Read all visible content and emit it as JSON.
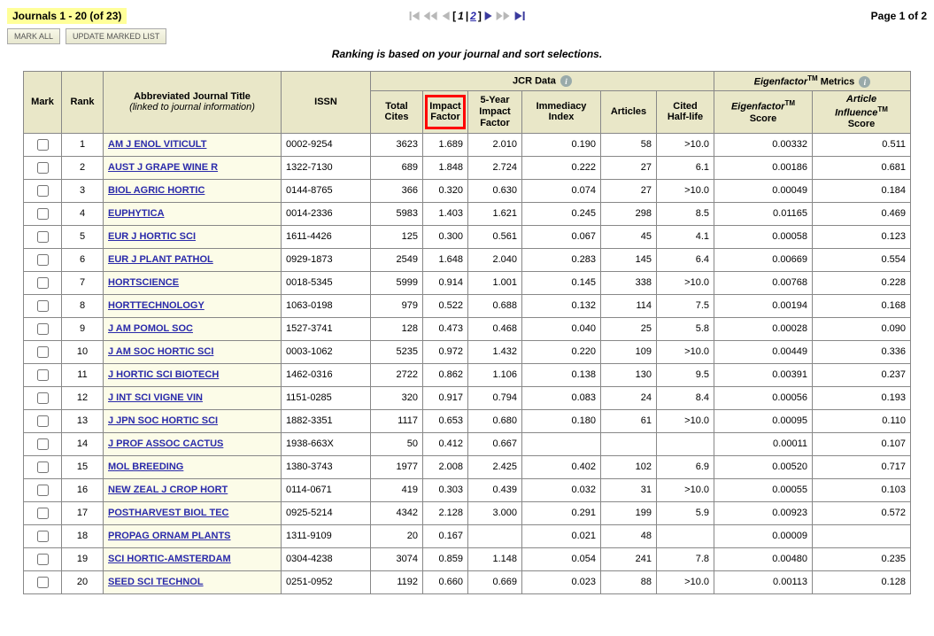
{
  "header": {
    "count_text": "Journals 1 - 20 (of 23)",
    "page_text": "Page 1 of 2",
    "ranking_text": "Ranking is based on your journal and sort selections.",
    "mark_all": "MARK ALL",
    "update_marked": "UPDATE MARKED LIST",
    "pages": [
      "1",
      "2"
    ],
    "current_page": "1"
  },
  "columns": {
    "mark": "Mark",
    "rank": "Rank",
    "title": "Abbreviated Journal Title",
    "title_sub": "(linked to journal information)",
    "issn": "ISSN",
    "jcr_group": "JCR Data",
    "eigen_group": "Eigenfactor",
    "eigen_group_suffix": " Metrics",
    "total_cites": "Total Cites",
    "impact_factor": "Impact Factor",
    "five_year": "5-Year Impact Factor",
    "immediacy": "Immediacy Index",
    "articles": "Articles",
    "halflife": "Cited Half-life",
    "eigen_score": "Eigenfactor",
    "eigen_score_suffix": " Score",
    "influence": "Article Influence",
    "influence_suffix": " Score"
  },
  "col_widths": {
    "total_cites": 48,
    "impact_factor": 50,
    "five_year": 50,
    "immediacy": 78,
    "articles": 52,
    "halflife": 54,
    "eigen": 100,
    "influence": 100
  },
  "colors": {
    "highlight_bg": "#ffff99",
    "header_bg": "#e9e7c8",
    "title_bg": "#fcfce8",
    "link": "#2a2aaa",
    "red": "#ff0000",
    "nav_enabled": "#3a3a9d",
    "nav_disabled": "#b8b8b8"
  },
  "rows": [
    {
      "rank": 1,
      "title": "AM J ENOL VITICULT",
      "issn": "0002-9254",
      "cites": "3623",
      "if": "1.689",
      "if5": "2.010",
      "imm": "0.190",
      "art": "58",
      "hl": ">10.0",
      "eig": "0.00332",
      "inf": "0.511"
    },
    {
      "rank": 2,
      "title": "AUST J GRAPE WINE R",
      "issn": "1322-7130",
      "cites": "689",
      "if": "1.848",
      "if5": "2.724",
      "imm": "0.222",
      "art": "27",
      "hl": "6.1",
      "eig": "0.00186",
      "inf": "0.681"
    },
    {
      "rank": 3,
      "title": "BIOL AGRIC HORTIC",
      "issn": "0144-8765",
      "cites": "366",
      "if": "0.320",
      "if5": "0.630",
      "imm": "0.074",
      "art": "27",
      "hl": ">10.0",
      "eig": "0.00049",
      "inf": "0.184"
    },
    {
      "rank": 4,
      "title": "EUPHYTICA",
      "issn": "0014-2336",
      "cites": "5983",
      "if": "1.403",
      "if5": "1.621",
      "imm": "0.245",
      "art": "298",
      "hl": "8.5",
      "eig": "0.01165",
      "inf": "0.469"
    },
    {
      "rank": 5,
      "title": "EUR J HORTIC SCI",
      "issn": "1611-4426",
      "cites": "125",
      "if": "0.300",
      "if5": "0.561",
      "imm": "0.067",
      "art": "45",
      "hl": "4.1",
      "eig": "0.00058",
      "inf": "0.123"
    },
    {
      "rank": 6,
      "title": "EUR J PLANT PATHOL",
      "issn": "0929-1873",
      "cites": "2549",
      "if": "1.648",
      "if5": "2.040",
      "imm": "0.283",
      "art": "145",
      "hl": "6.4",
      "eig": "0.00669",
      "inf": "0.554"
    },
    {
      "rank": 7,
      "title": "HORTSCIENCE",
      "issn": "0018-5345",
      "cites": "5999",
      "if": "0.914",
      "if5": "1.001",
      "imm": "0.145",
      "art": "338",
      "hl": ">10.0",
      "eig": "0.00768",
      "inf": "0.228"
    },
    {
      "rank": 8,
      "title": "HORTTECHNOLOGY",
      "issn": "1063-0198",
      "cites": "979",
      "if": "0.522",
      "if5": "0.688",
      "imm": "0.132",
      "art": "114",
      "hl": "7.5",
      "eig": "0.00194",
      "inf": "0.168"
    },
    {
      "rank": 9,
      "title": "J AM POMOL SOC",
      "issn": "1527-3741",
      "cites": "128",
      "if": "0.473",
      "if5": "0.468",
      "imm": "0.040",
      "art": "25",
      "hl": "5.8",
      "eig": "0.00028",
      "inf": "0.090"
    },
    {
      "rank": 10,
      "title": "J AM SOC HORTIC SCI",
      "issn": "0003-1062",
      "cites": "5235",
      "if": "0.972",
      "if5": "1.432",
      "imm": "0.220",
      "art": "109",
      "hl": ">10.0",
      "eig": "0.00449",
      "inf": "0.336"
    },
    {
      "rank": 11,
      "title": "J HORTIC SCI BIOTECH",
      "issn": "1462-0316",
      "cites": "2722",
      "if": "0.862",
      "if5": "1.106",
      "imm": "0.138",
      "art": "130",
      "hl": "9.5",
      "eig": "0.00391",
      "inf": "0.237"
    },
    {
      "rank": 12,
      "title": "J INT SCI VIGNE VIN",
      "issn": "1151-0285",
      "cites": "320",
      "if": "0.917",
      "if5": "0.794",
      "imm": "0.083",
      "art": "24",
      "hl": "8.4",
      "eig": "0.00056",
      "inf": "0.193"
    },
    {
      "rank": 13,
      "title": "J JPN SOC HORTIC SCI",
      "issn": "1882-3351",
      "cites": "1117",
      "if": "0.653",
      "if5": "0.680",
      "imm": "0.180",
      "art": "61",
      "hl": ">10.0",
      "eig": "0.00095",
      "inf": "0.110"
    },
    {
      "rank": 14,
      "title": "J PROF ASSOC CACTUS",
      "issn": "1938-663X",
      "cites": "50",
      "if": "0.412",
      "if5": "0.667",
      "imm": "",
      "art": "",
      "hl": "",
      "eig": "0.00011",
      "inf": "0.107"
    },
    {
      "rank": 15,
      "title": "MOL BREEDING",
      "issn": "1380-3743",
      "cites": "1977",
      "if": "2.008",
      "if5": "2.425",
      "imm": "0.402",
      "art": "102",
      "hl": "6.9",
      "eig": "0.00520",
      "inf": "0.717"
    },
    {
      "rank": 16,
      "title": "NEW ZEAL J CROP HORT",
      "issn": "0114-0671",
      "cites": "419",
      "if": "0.303",
      "if5": "0.439",
      "imm": "0.032",
      "art": "31",
      "hl": ">10.0",
      "eig": "0.00055",
      "inf": "0.103"
    },
    {
      "rank": 17,
      "title": "POSTHARVEST BIOL TEC",
      "issn": "0925-5214",
      "cites": "4342",
      "if": "2.128",
      "if5": "3.000",
      "imm": "0.291",
      "art": "199",
      "hl": "5.9",
      "eig": "0.00923",
      "inf": "0.572"
    },
    {
      "rank": 18,
      "title": "PROPAG ORNAM PLANTS",
      "issn": "1311-9109",
      "cites": "20",
      "if": "0.167",
      "if5": "",
      "imm": "0.021",
      "art": "48",
      "hl": "",
      "eig": "0.00009",
      "inf": ""
    },
    {
      "rank": 19,
      "title": "SCI HORTIC-AMSTERDAM",
      "issn": "0304-4238",
      "cites": "3074",
      "if": "0.859",
      "if5": "1.148",
      "imm": "0.054",
      "art": "241",
      "hl": "7.8",
      "eig": "0.00480",
      "inf": "0.235"
    },
    {
      "rank": 20,
      "title": "SEED SCI TECHNOL",
      "issn": "0251-0952",
      "cites": "1192",
      "if": "0.660",
      "if5": "0.669",
      "imm": "0.023",
      "art": "88",
      "hl": ">10.0",
      "eig": "0.00113",
      "inf": "0.128"
    }
  ]
}
